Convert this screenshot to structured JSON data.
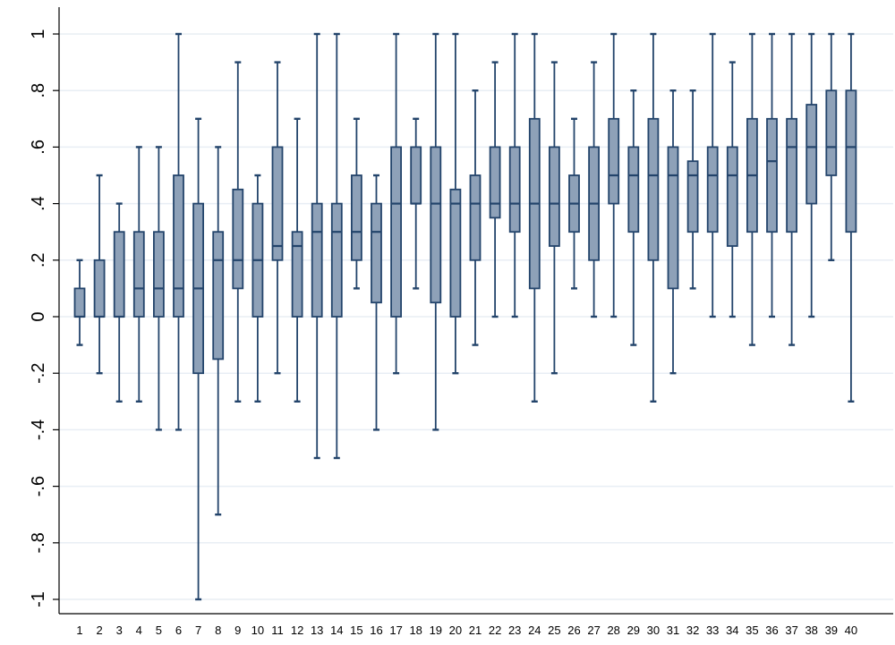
{
  "chart_data": {
    "type": "box",
    "title": "",
    "xlabel": "",
    "ylabel": "",
    "ylim": [
      -1.05,
      1.05
    ],
    "y_ticks": [
      {
        "value": 1,
        "label": "1"
      },
      {
        "value": 0.8,
        "label": ".8"
      },
      {
        "value": 0.6,
        "label": ".6"
      },
      {
        "value": 0.4,
        "label": ".4"
      },
      {
        "value": 0.2,
        "label": ".2"
      },
      {
        "value": 0,
        "label": "0"
      },
      {
        "value": -0.2,
        "label": "-.2"
      },
      {
        "value": -0.4,
        "label": "-.4"
      },
      {
        "value": -0.6,
        "label": "-.6"
      },
      {
        "value": -0.8,
        "label": "-.8"
      },
      {
        "value": -1,
        "label": "-1"
      }
    ],
    "grid": true,
    "colors": {
      "box_fill": "#8ea1b8",
      "box_stroke": "#23446b",
      "grid": "#e8eef4",
      "axis": "#000000"
    },
    "boxes": [
      {
        "label": "1",
        "min": -0.1,
        "q1": 0.0,
        "median": 0.0,
        "q3": 0.1,
        "max": 0.2
      },
      {
        "label": "2",
        "min": -0.2,
        "q1": 0.0,
        "median": 0.0,
        "q3": 0.2,
        "max": 0.5
      },
      {
        "label": "3",
        "min": -0.3,
        "q1": 0.0,
        "median": 0.0,
        "q3": 0.3,
        "max": 0.4
      },
      {
        "label": "4",
        "min": -0.3,
        "q1": 0.0,
        "median": 0.1,
        "q3": 0.3,
        "max": 0.6
      },
      {
        "label": "5",
        "min": -0.4,
        "q1": 0.0,
        "median": 0.1,
        "q3": 0.3,
        "max": 0.6
      },
      {
        "label": "6",
        "min": -0.4,
        "q1": 0.0,
        "median": 0.1,
        "q3": 0.5,
        "max": 1.0
      },
      {
        "label": "7",
        "min": -1.0,
        "q1": -0.2,
        "median": 0.1,
        "q3": 0.4,
        "max": 0.7
      },
      {
        "label": "8",
        "min": -0.7,
        "q1": -0.15,
        "median": 0.2,
        "q3": 0.3,
        "max": 0.6
      },
      {
        "label": "9",
        "min": -0.3,
        "q1": 0.1,
        "median": 0.2,
        "q3": 0.45,
        "max": 0.9
      },
      {
        "label": "10",
        "min": -0.3,
        "q1": 0.0,
        "median": 0.2,
        "q3": 0.4,
        "max": 0.5
      },
      {
        "label": "11",
        "min": -0.2,
        "q1": 0.2,
        "median": 0.25,
        "q3": 0.6,
        "max": 0.9
      },
      {
        "label": "12",
        "min": -0.3,
        "q1": 0.0,
        "median": 0.25,
        "q3": 0.3,
        "max": 0.7
      },
      {
        "label": "13",
        "min": -0.5,
        "q1": 0.0,
        "median": 0.3,
        "q3": 0.4,
        "max": 1.0
      },
      {
        "label": "14",
        "min": -0.5,
        "q1": 0.0,
        "median": 0.3,
        "q3": 0.4,
        "max": 1.0
      },
      {
        "label": "15",
        "min": 0.1,
        "q1": 0.2,
        "median": 0.3,
        "q3": 0.5,
        "max": 0.7
      },
      {
        "label": "16",
        "min": -0.4,
        "q1": 0.05,
        "median": 0.3,
        "q3": 0.4,
        "max": 0.5
      },
      {
        "label": "17",
        "min": -0.2,
        "q1": 0.0,
        "median": 0.4,
        "q3": 0.6,
        "max": 1.0
      },
      {
        "label": "18",
        "min": 0.1,
        "q1": 0.4,
        "median": 0.4,
        "q3": 0.6,
        "max": 0.7
      },
      {
        "label": "19",
        "min": -0.4,
        "q1": 0.05,
        "median": 0.4,
        "q3": 0.6,
        "max": 1.0
      },
      {
        "label": "20",
        "min": -0.2,
        "q1": 0.0,
        "median": 0.4,
        "q3": 0.45,
        "max": 1.0
      },
      {
        "label": "21",
        "min": -0.1,
        "q1": 0.2,
        "median": 0.4,
        "q3": 0.5,
        "max": 0.8
      },
      {
        "label": "22",
        "min": 0.0,
        "q1": 0.35,
        "median": 0.4,
        "q3": 0.6,
        "max": 0.9
      },
      {
        "label": "23",
        "min": 0.0,
        "q1": 0.3,
        "median": 0.4,
        "q3": 0.6,
        "max": 1.0
      },
      {
        "label": "24",
        "min": -0.3,
        "q1": 0.1,
        "median": 0.4,
        "q3": 0.7,
        "max": 1.0
      },
      {
        "label": "25",
        "min": -0.2,
        "q1": 0.25,
        "median": 0.4,
        "q3": 0.6,
        "max": 0.9
      },
      {
        "label": "26",
        "min": 0.1,
        "q1": 0.3,
        "median": 0.4,
        "q3": 0.5,
        "max": 0.7
      },
      {
        "label": "27",
        "min": 0.0,
        "q1": 0.2,
        "median": 0.4,
        "q3": 0.6,
        "max": 0.9
      },
      {
        "label": "28",
        "min": 0.0,
        "q1": 0.4,
        "median": 0.5,
        "q3": 0.7,
        "max": 1.0
      },
      {
        "label": "29",
        "min": -0.1,
        "q1": 0.3,
        "median": 0.5,
        "q3": 0.6,
        "max": 0.8
      },
      {
        "label": "30",
        "min": -0.3,
        "q1": 0.2,
        "median": 0.5,
        "q3": 0.7,
        "max": 1.0
      },
      {
        "label": "31",
        "min": -0.2,
        "q1": 0.1,
        "median": 0.5,
        "q3": 0.6,
        "max": 0.8
      },
      {
        "label": "32",
        "min": 0.1,
        "q1": 0.3,
        "median": 0.5,
        "q3": 0.55,
        "max": 0.8
      },
      {
        "label": "33",
        "min": 0.0,
        "q1": 0.3,
        "median": 0.5,
        "q3": 0.6,
        "max": 1.0
      },
      {
        "label": "34",
        "min": 0.0,
        "q1": 0.25,
        "median": 0.5,
        "q3": 0.6,
        "max": 0.9
      },
      {
        "label": "35",
        "min": -0.1,
        "q1": 0.3,
        "median": 0.5,
        "q3": 0.7,
        "max": 1.0
      },
      {
        "label": "36",
        "min": 0.0,
        "q1": 0.3,
        "median": 0.55,
        "q3": 0.7,
        "max": 1.0
      },
      {
        "label": "37",
        "min": -0.1,
        "q1": 0.3,
        "median": 0.6,
        "q3": 0.7,
        "max": 1.0
      },
      {
        "label": "38",
        "min": 0.0,
        "q1": 0.4,
        "median": 0.6,
        "q3": 0.75,
        "max": 1.0
      },
      {
        "label": "39",
        "min": 0.2,
        "q1": 0.5,
        "median": 0.6,
        "q3": 0.8,
        "max": 1.0
      },
      {
        "label": "40",
        "min": -0.3,
        "q1": 0.3,
        "median": 0.6,
        "q3": 0.8,
        "max": 1.0
      }
    ]
  }
}
